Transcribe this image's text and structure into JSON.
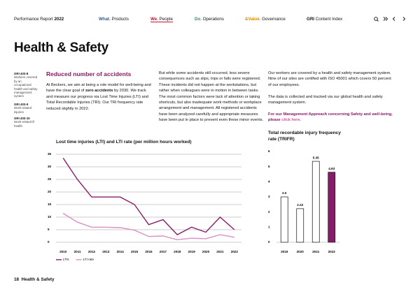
{
  "header": {
    "report": "Performance Report",
    "year": "2022",
    "nav": [
      {
        "key": "What.",
        "label": "Products"
      },
      {
        "key": "We.",
        "label": "People"
      },
      {
        "key": "Do.",
        "label": "Operations"
      },
      {
        "key": "&Value.",
        "label": "Governance"
      }
    ],
    "index": {
      "key": "GRI",
      "label": "Content Index"
    }
  },
  "title": "Health & Safety",
  "sidebar": [
    {
      "code": "GRI 403-8",
      "text": "Workers covered by an occupational health and safety management system"
    },
    {
      "code": "GRI 403-9",
      "text": "Work-related injuries"
    },
    {
      "code": "GRI 403-10",
      "text": "Work-related ill health"
    }
  ],
  "columns": {
    "heading": "Reduced number of accidents",
    "intro": [
      "At Beckers, we aim at being a role model for well-being and have the clear goal of ",
      "zero accidents",
      " by 2030. We track and measure our progress via Lost Time Injuries (LTI) and Total Recordable Injuries (TRI). Our TRI frequency rate reduced slightly in 2022."
    ],
    "middle": "But while some accidents still occurred, less severe consequences such as slips, trips or falls were registered. These incidents did not happen at the workstations, but rather when colleagues were in motion in between tasks. The most common factors were lack of attention or taking shortcuts, but also inadequate work methods or workplace arrangement and management. All registered accidents have been analyzed carefully and appropriate measures have been put in place to prevent even these minor events.",
    "right": [
      "Our workers are covered by a health and safety management system. Nine of our sites are certified with ISO 45001 which covers 50 percent of our employees.",
      "The data is collected and tracked via our global health and safety management system."
    ],
    "link": [
      "For our Management Approach concerning Safety and well-being, please ",
      "click here."
    ]
  },
  "chart_data": [
    {
      "type": "line",
      "title": "Lost time injuries (LTI) and LTI rate (per million hours worked)",
      "categories": [
        "2010",
        "2011",
        "2012",
        "2013",
        "2014",
        "2015",
        "2016",
        "2017",
        "2018",
        "2019",
        "2020",
        "2021",
        "2022"
      ],
      "series": [
        {
          "name": "LTIs",
          "color": "#8b1a6b",
          "values": [
            33.5,
            25,
            18,
            18,
            18,
            15,
            7,
            9,
            3,
            6,
            4,
            10,
            5
          ]
        },
        {
          "name": "LTI rate",
          "color": "#d98fc4",
          "values": [
            11.5,
            8,
            6,
            6,
            5.8,
            4.8,
            2.3,
            2.5,
            1,
            1.6,
            1.4,
            3,
            2
          ]
        }
      ],
      "ylim": [
        0,
        35
      ],
      "yticks": [
        0,
        5,
        10,
        15,
        20,
        25,
        30,
        35
      ],
      "grid": true,
      "legend": "bottom"
    },
    {
      "type": "bar",
      "title": "Total recordable injury frequency rate (TRIFR)",
      "categories": [
        "2019",
        "2020",
        "2021",
        "2022"
      ],
      "values": [
        3,
        2.22,
        5.35,
        4.63
      ],
      "value_labels": [
        "3.0",
        "2.22",
        "5.35",
        "4.63"
      ],
      "colors": [
        "#ffffff",
        "#ffffff",
        "#ffffff",
        "#8b1a6b"
      ],
      "ylim": [
        0,
        6
      ],
      "yticks": [
        0,
        1,
        2,
        3,
        4,
        5,
        6
      ],
      "grid": false
    }
  ],
  "footer": {
    "page": "18",
    "section": "Health & Safety"
  }
}
